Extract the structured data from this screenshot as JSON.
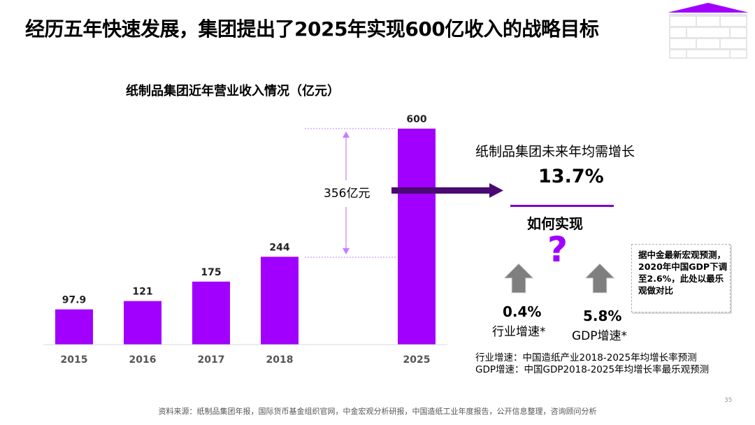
{
  "header": {
    "title": "经历五年快速发展，集团提出了2025年实现600亿收入的战略目标"
  },
  "chart_data": {
    "type": "bar",
    "title": "纸制品集团近年营业收入情况（亿元）",
    "categories": [
      "2015",
      "2016",
      "2017",
      "2018",
      "2025"
    ],
    "values": [
      97.9,
      121,
      175,
      244,
      600
    ],
    "value_labels": [
      "97.9",
      "121",
      "175",
      "244",
      "600"
    ],
    "bar_color": "#a100ff",
    "annotation": "356亿元"
  },
  "right_panel": {
    "title": "纸制品集团未来年均需增长",
    "cagr": "13.7%",
    "how": "如何实现",
    "question_mark": "?",
    "industry": {
      "value": "0.4%",
      "label": "行业增速*"
    },
    "gdp": {
      "value": "5.8%",
      "label": "GDP增速*"
    },
    "note": "据中金最新宏观预测，2020年中国GDP下调至2.6%，此处以最乐观做对比",
    "footnotes": [
      "行业增速：中国造纸产业2018-2025年均增长率预测",
      "GDP增速：中国GDP2018-2025年均增长率最乐观预测"
    ]
  },
  "footer": {
    "source": "资料来源：纸制品集团年报，国际货币基金组织官网，中金宏观分析研报，中国造纸工业年度报告，公开信息整理，咨询顾问分析",
    "page_number": "35"
  },
  "colors": {
    "accent": "#a100ff",
    "dark_accent": "#4b0a72",
    "arrow_gray": "#7f7f7f"
  }
}
